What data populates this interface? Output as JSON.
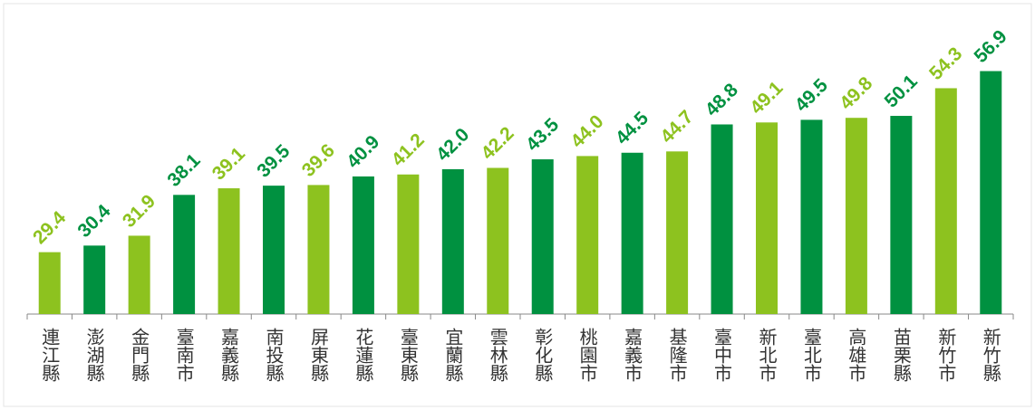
{
  "chart_data": {
    "type": "bar",
    "categories": [
      "連江縣",
      "澎湖縣",
      "金門縣",
      "臺南市",
      "嘉義縣",
      "南投縣",
      "屏東縣",
      "花蓮縣",
      "臺東縣",
      "宜蘭縣",
      "雲林縣",
      "彰化縣",
      "桃園市",
      "嘉義市",
      "基隆市",
      "臺中市",
      "新北市",
      "臺北市",
      "高雄市",
      "苗栗縣",
      "新竹市",
      "新竹縣"
    ],
    "values": [
      29.4,
      30.4,
      31.9,
      38.1,
      39.1,
      39.5,
      39.6,
      40.9,
      41.2,
      42.0,
      42.2,
      43.5,
      44.0,
      44.5,
      44.7,
      48.8,
      49.1,
      49.5,
      49.8,
      50.1,
      54.3,
      56.9
    ],
    "value_labels": [
      "29.4",
      "30.4",
      "31.9",
      "38.1",
      "39.1",
      "39.5",
      "39.6",
      "40.9",
      "41.2",
      "42.0",
      "42.2",
      "43.5",
      "44.0",
      "44.5",
      "44.7",
      "48.8",
      "49.1",
      "49.5",
      "49.8",
      "50.1",
      "54.3",
      "56.9"
    ],
    "colors": [
      "#8dc21f",
      "#009140",
      "#8dc21f",
      "#009140",
      "#8dc21f",
      "#009140",
      "#8dc21f",
      "#009140",
      "#8dc21f",
      "#009140",
      "#8dc21f",
      "#009140",
      "#8dc21f",
      "#009140",
      "#8dc21f",
      "#009140",
      "#8dc21f",
      "#009140",
      "#8dc21f",
      "#009140",
      "#8dc21f",
      "#009140"
    ],
    "ylim": [
      20,
      60
    ]
  }
}
